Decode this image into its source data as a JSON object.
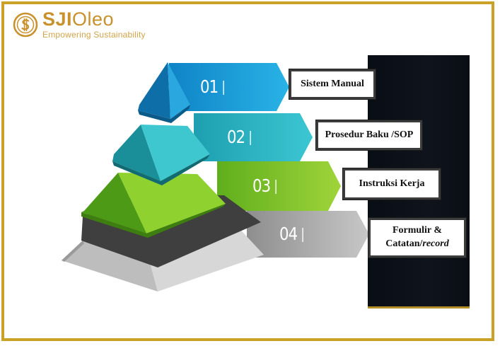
{
  "header": {
    "brand_bold": "SJI",
    "brand_thin": "Oleo",
    "tagline": "Empowering Sustainability"
  },
  "pyramid": {
    "levels": [
      {
        "number": "01",
        "label": "Sistem Manual",
        "color": "#1aa3d6"
      },
      {
        "number": "02",
        "label": "Prosedur Baku /SOP",
        "color": "#2bb7c4"
      },
      {
        "number": "03",
        "label": "Instruksi Kerja",
        "color": "#7cc42b"
      },
      {
        "number": "04",
        "label_line1": "Formulir &",
        "label_line2": "Catatan/",
        "label_italic": "record",
        "color": "#a9a9a9"
      }
    ]
  },
  "colors": {
    "frame": "#c9a227",
    "brand": "#c8912c"
  }
}
